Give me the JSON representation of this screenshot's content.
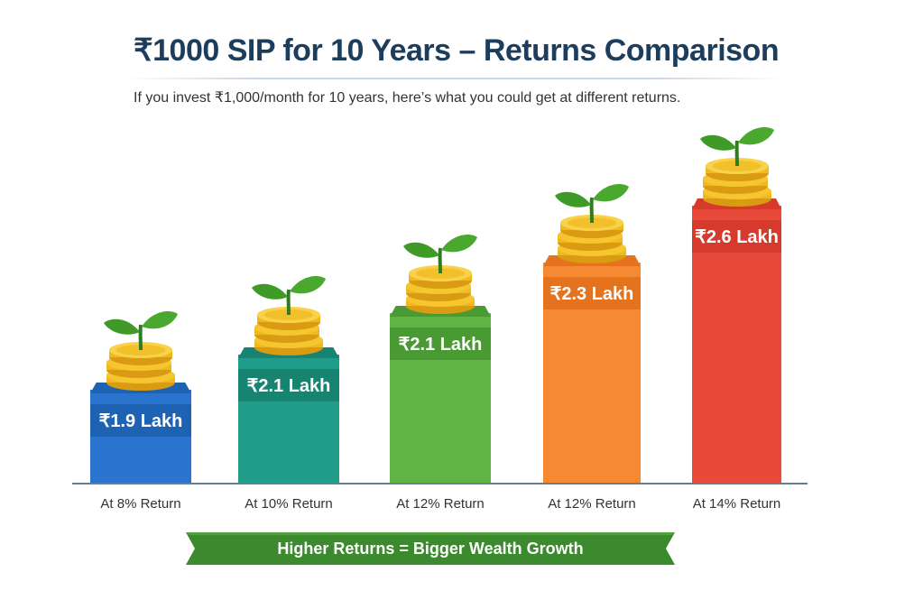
{
  "header": {
    "title": "₹1000 SIP for 10 Years – Returns Comparison",
    "subtitle": "If you invest ₹1,000/month for 10 years, here’s what you could get at different returns."
  },
  "bars": [
    {
      "label": "₹1.9 Lakh",
      "category": "At 8% Return",
      "color": "#2a74cf",
      "band": "#1e62b4"
    },
    {
      "label": "₹2.1 Lakh",
      "category": "At 10% Return",
      "color": "#1f9c8a",
      "band": "#178371"
    },
    {
      "label": "₹2.1 Lakh",
      "category": "At 12% Return",
      "color": "#5fb443",
      "band": "#4a9a34"
    },
    {
      "label": "₹2.3 Lakh",
      "category": "At 12% Return",
      "color": "#f58a32",
      "band": "#e5731e"
    },
    {
      "label": "₹2.6 Lakh",
      "category": "At 14% Return",
      "color": "#e84a3a",
      "band": "#d63a2c"
    }
  ],
  "banner": {
    "text": "Higher Returns = Bigger Wealth Growth",
    "color": "#3c8a2e"
  },
  "chart_data": {
    "type": "bar",
    "title": "₹1000 SIP for 10 Years – Returns Comparison",
    "subtitle": "If you invest ₹1,000/month for 10 years, here’s what you could get at different returns.",
    "categories": [
      "At 8% Return",
      "At 10% Return",
      "At 12% Return",
      "At 12% Return",
      "At 14% Return"
    ],
    "values": [
      1.9,
      2.1,
      2.1,
      2.3,
      2.6
    ],
    "value_labels": [
      "₹1.9 Lakh",
      "₹2.1 Lakh",
      "₹2.1 Lakh",
      "₹2.3 Lakh",
      "₹2.6 Lakh"
    ],
    "unit": "Lakh (₹)",
    "xlabel": "",
    "ylabel": "",
    "grid": false,
    "legend": null,
    "annotation": "Higher Returns = Bigger Wealth Growth"
  }
}
